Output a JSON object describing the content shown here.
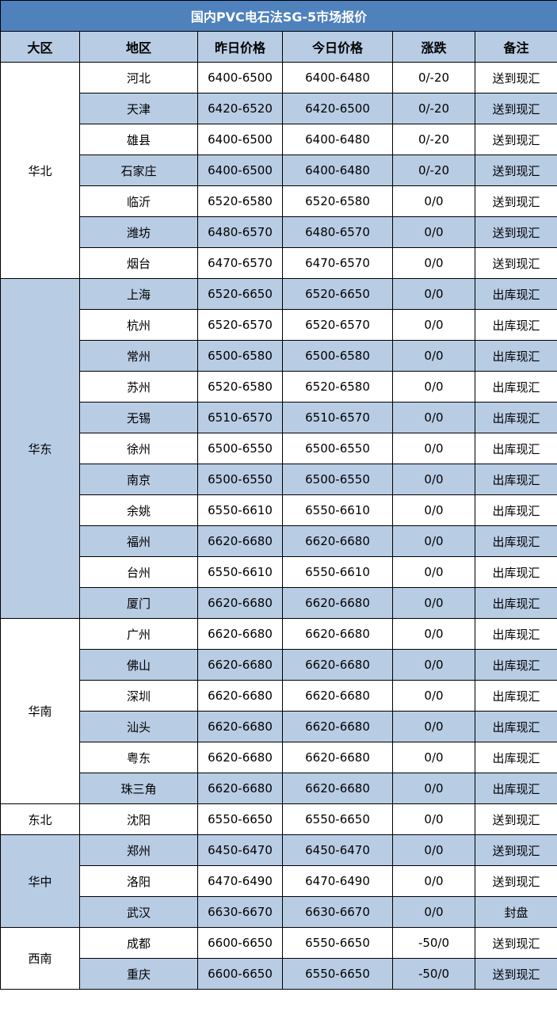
{
  "title": "国内PVC电石法SG-5市场报价",
  "headers": [
    "大区",
    "地区",
    "昨日价格",
    "今日价格",
    "涨跌",
    "备注"
  ],
  "colors": {
    "title_bg": "#4f81bd",
    "stripe": "#b8cce4"
  },
  "groups": [
    {
      "region": "华北",
      "shaded": false,
      "rows": [
        [
          "河北",
          "6400-6500",
          "6400-6480",
          "0/-20",
          "送到现汇"
        ],
        [
          "天津",
          "6420-6520",
          "6420-6500",
          "0/-20",
          "送到现汇"
        ],
        [
          "雄县",
          "6400-6500",
          "6400-6480",
          "0/-20",
          "送到现汇"
        ],
        [
          "石家庄",
          "6400-6500",
          "6400-6480",
          "0/-20",
          "送到现汇"
        ],
        [
          "临沂",
          "6520-6580",
          "6520-6580",
          "0/0",
          "送到现汇"
        ],
        [
          "潍坊",
          "6480-6570",
          "6480-6570",
          "0/0",
          "送到现汇"
        ],
        [
          "烟台",
          "6470-6570",
          "6470-6570",
          "0/0",
          "送到现汇"
        ]
      ]
    },
    {
      "region": "华东",
      "shaded": true,
      "rows": [
        [
          "上海",
          "6520-6650",
          "6520-6650",
          "0/0",
          "出库现汇"
        ],
        [
          "杭州",
          "6520-6570",
          "6520-6570",
          "0/0",
          "出库现汇"
        ],
        [
          "常州",
          "6500-6580",
          "6500-6580",
          "0/0",
          "出库现汇"
        ],
        [
          "苏州",
          "6520-6580",
          "6520-6580",
          "0/0",
          "出库现汇"
        ],
        [
          "无锡",
          "6510-6570",
          "6510-6570",
          "0/0",
          "出库现汇"
        ],
        [
          "徐州",
          "6500-6550",
          "6500-6550",
          "0/0",
          "出库现汇"
        ],
        [
          "南京",
          "6500-6550",
          "6500-6550",
          "0/0",
          "出库现汇"
        ],
        [
          "余姚",
          "6550-6610",
          "6550-6610",
          "0/0",
          "出库现汇"
        ],
        [
          "福州",
          "6620-6680",
          "6620-6680",
          "0/0",
          "出库现汇"
        ],
        [
          "台州",
          "6550-6610",
          "6550-6610",
          "0/0",
          "出库现汇"
        ],
        [
          "厦门",
          "6620-6680",
          "6620-6680",
          "0/0",
          "出库现汇"
        ]
      ]
    },
    {
      "region": "华南",
      "shaded": false,
      "rows": [
        [
          "广州",
          "6620-6680",
          "6620-6680",
          "0/0",
          "出库现汇"
        ],
        [
          "佛山",
          "6620-6680",
          "6620-6680",
          "0/0",
          "出库现汇"
        ],
        [
          "深圳",
          "6620-6680",
          "6620-6680",
          "0/0",
          "出库现汇"
        ],
        [
          "汕头",
          "6620-6680",
          "6620-6680",
          "0/0",
          "出库现汇"
        ],
        [
          "粤东",
          "6620-6680",
          "6620-6680",
          "0/0",
          "出库现汇"
        ],
        [
          "珠三角",
          "6620-6680",
          "6620-6680",
          "0/0",
          "出库现汇"
        ]
      ]
    },
    {
      "region": "东北",
      "shaded": false,
      "rows": [
        [
          "沈阳",
          "6550-6650",
          "6550-6650",
          "0/0",
          "送到现汇"
        ]
      ]
    },
    {
      "region": "华中",
      "shaded": true,
      "rows": [
        [
          "郑州",
          "6450-6470",
          "6450-6470",
          "0/0",
          "送到现汇"
        ],
        [
          "洛阳",
          "6470-6490",
          "6470-6490",
          "0/0",
          "送到现汇"
        ],
        [
          "武汉",
          "6630-6670",
          "6630-6670",
          "0/0",
          "封盘"
        ]
      ]
    },
    {
      "region": "西南",
      "shaded": false,
      "rows": [
        [
          "成都",
          "6600-6650",
          "6550-6650",
          "-50/0",
          "送到现汇"
        ],
        [
          "重庆",
          "6600-6650",
          "6550-6650",
          "-50/0",
          "送到现汇"
        ]
      ]
    }
  ]
}
